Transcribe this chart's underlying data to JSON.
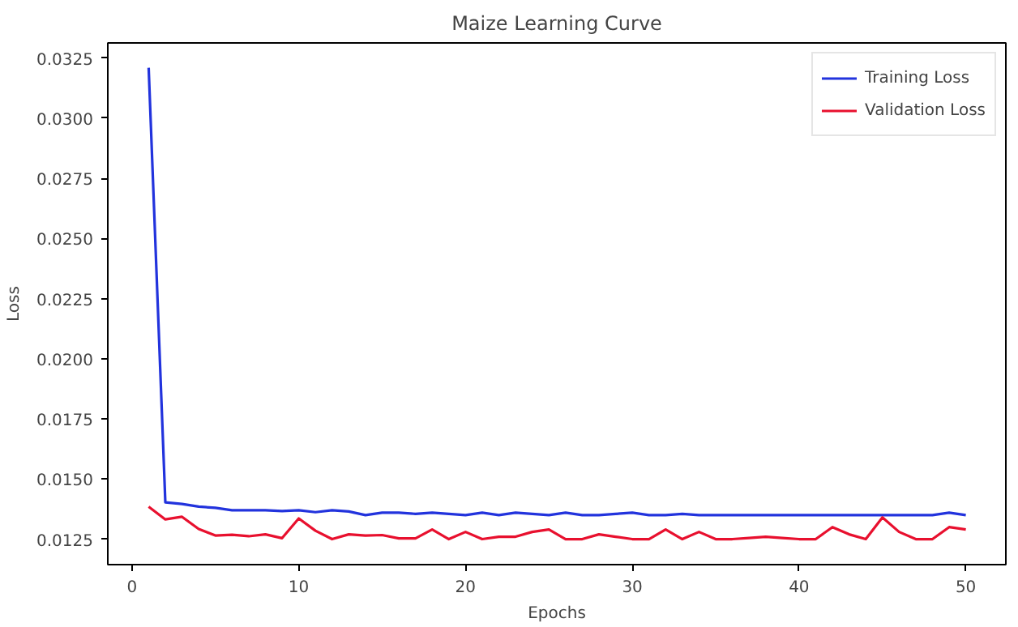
{
  "chart_data": {
    "type": "line",
    "title": "Maize Learning Curve",
    "xlabel": "Epochs",
    "ylabel": "Loss",
    "x": [
      1,
      2,
      3,
      4,
      5,
      6,
      7,
      8,
      9,
      10,
      11,
      12,
      13,
      14,
      15,
      16,
      17,
      18,
      19,
      20,
      21,
      22,
      23,
      24,
      25,
      26,
      27,
      28,
      29,
      30,
      31,
      32,
      33,
      34,
      35,
      36,
      37,
      38,
      39,
      40,
      41,
      42,
      43,
      44,
      45,
      46,
      47,
      48,
      49,
      50
    ],
    "series": [
      {
        "name": "Training Loss",
        "color": "#2233dd",
        "values": [
          0.0321,
          0.01403,
          0.01396,
          0.01385,
          0.0138,
          0.0137,
          0.0137,
          0.0137,
          0.01367,
          0.0137,
          0.01362,
          0.0137,
          0.01365,
          0.0135,
          0.0136,
          0.0136,
          0.01355,
          0.0136,
          0.01355,
          0.0135,
          0.0136,
          0.0135,
          0.0136,
          0.01355,
          0.0135,
          0.0136,
          0.0135,
          0.0135,
          0.01355,
          0.0136,
          0.0135,
          0.0135,
          0.01355,
          0.0135,
          0.0135,
          0.0135,
          0.0135,
          0.0135,
          0.0135,
          0.0135,
          0.0135,
          0.0135,
          0.0135,
          0.0135,
          0.0135,
          0.0135,
          0.0135,
          0.0135,
          0.0136,
          0.0135
        ]
      },
      {
        "name": "Validation Loss",
        "color": "#e8102e",
        "values": [
          0.01385,
          0.01332,
          0.01343,
          0.01292,
          0.01265,
          0.01268,
          0.01262,
          0.0127,
          0.01254,
          0.01336,
          0.01285,
          0.0125,
          0.0127,
          0.01265,
          0.01267,
          0.01253,
          0.01253,
          0.0129,
          0.0125,
          0.0128,
          0.0125,
          0.0126,
          0.0126,
          0.0128,
          0.0129,
          0.0125,
          0.0125,
          0.0127,
          0.0126,
          0.0125,
          0.0125,
          0.0129,
          0.0125,
          0.0128,
          0.0125,
          0.0125,
          0.01255,
          0.0126,
          0.01255,
          0.0125,
          0.0125,
          0.013,
          0.0127,
          0.0125,
          0.0134,
          0.0128,
          0.0125,
          0.0125,
          0.013,
          0.0129
        ]
      }
    ],
    "xlim": [
      -1.45,
      52.4
    ],
    "ylim": [
      0.01144,
      0.03313
    ],
    "xticks": [
      0,
      10,
      20,
      30,
      40,
      50
    ],
    "yticks": [
      {
        "value": 0.0125,
        "label": "0.0125"
      },
      {
        "value": 0.015,
        "label": "0.0150"
      },
      {
        "value": 0.0175,
        "label": "0.0175"
      },
      {
        "value": 0.02,
        "label": "0.0200"
      },
      {
        "value": 0.0225,
        "label": "0.0225"
      },
      {
        "value": 0.025,
        "label": "0.0250"
      },
      {
        "value": 0.0275,
        "label": "0.0275"
      },
      {
        "value": 0.03,
        "label": "0.0300"
      },
      {
        "value": 0.0325,
        "label": "0.0325"
      }
    ],
    "legend": "top right",
    "grid": false,
    "line_style": "solid",
    "marker": "none"
  }
}
